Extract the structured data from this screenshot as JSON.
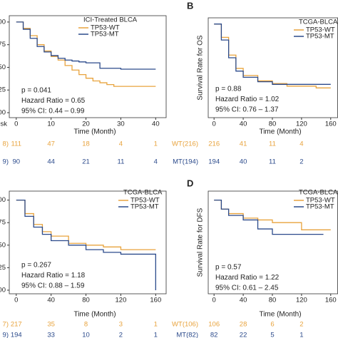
{
  "chart_data": [
    {
      "type": "line",
      "step": true,
      "panel_letter": null,
      "legend_title": "ICI-Treated BLCA",
      "x_label": "Time (Month)",
      "y_label": null,
      "xlim": [
        -2,
        43
      ],
      "xticks": [
        0,
        10,
        20,
        30,
        40
      ],
      "ylim": [
        -0.055,
        1.07
      ],
      "yticks": [
        {
          "value": 0,
          "label": "0.00"
        },
        {
          "value": 0.25,
          "label": "0.25"
        },
        {
          "value": 0.5,
          "label": "0.50"
        },
        {
          "value": 0.75,
          "label": "0.75"
        },
        {
          "value": 1,
          "label": "1.00"
        }
      ],
      "series": [
        {
          "name": "TP53-WT",
          "color": "#e8a33d",
          "x": [
            0,
            2,
            4,
            6,
            8,
            10,
            12,
            14,
            16,
            18,
            20,
            22,
            24,
            26,
            28,
            40
          ],
          "values": [
            1,
            0.93,
            0.85,
            0.75,
            0.68,
            0.62,
            0.58,
            0.52,
            0.47,
            0.42,
            0.38,
            0.35,
            0.33,
            0.31,
            0.29,
            0.29
          ]
        },
        {
          "name": "TP53-MT",
          "color": "#2b4a8b",
          "x": [
            0,
            2,
            4,
            6,
            8,
            10,
            12,
            14,
            16,
            18,
            20,
            24,
            30,
            40
          ],
          "values": [
            1,
            0.92,
            0.82,
            0.73,
            0.67,
            0.63,
            0.6,
            0.58,
            0.57,
            0.56,
            0.55,
            0.49,
            0.48,
            0.48
          ]
        }
      ],
      "annotations": [
        "p = 0.041",
        "Hazard Ratio = 0.65",
        "95% CI: 0.44 – 0.99"
      ],
      "risk_title": "sk",
      "risk_table": [
        {
          "label": "8)",
          "color": "#e8a33d",
          "values": [
            111,
            47,
            18,
            4,
            1
          ]
        },
        {
          "label": "9)",
          "color": "#2b4a8b",
          "values": [
            90,
            44,
            21,
            11,
            4
          ]
        }
      ]
    },
    {
      "type": "line",
      "step": true,
      "panel_letter": "B",
      "legend_title": "TCGA-BLCA",
      "x_label": "Time (Month)",
      "y_label": "Survival Rate for OS",
      "xlim": [
        -8,
        170
      ],
      "xticks": [
        0,
        40,
        80,
        120,
        160
      ],
      "ylim": [
        -0.055,
        1.07
      ],
      "series": [
        {
          "name": "TP53-WT",
          "color": "#e8a33d",
          "x": [
            0,
            10,
            20,
            30,
            40,
            60,
            80,
            100,
            120,
            140,
            160
          ],
          "values": [
            1,
            0.85,
            0.65,
            0.5,
            0.42,
            0.36,
            0.33,
            0.3,
            0.3,
            0.28,
            0.28
          ]
        },
        {
          "name": "TP53-MT",
          "color": "#2b4a8b",
          "x": [
            0,
            10,
            20,
            30,
            40,
            60,
            80,
            100,
            120,
            140,
            160
          ],
          "values": [
            1,
            0.82,
            0.62,
            0.47,
            0.4,
            0.35,
            0.32,
            0.32,
            0.32,
            0.32,
            0.32
          ]
        }
      ],
      "annotations": [
        "p = 0.88",
        "Hazard Ratio = 1.02",
        "95% CI: 0.76 – 1.37"
      ],
      "risk_table": [
        {
          "label": "WT(216)",
          "color": "#e8a33d",
          "values": [
            216,
            41,
            11,
            4
          ]
        },
        {
          "label": "MT(194)",
          "color": "#2b4a8b",
          "values": [
            194,
            40,
            11,
            2
          ]
        }
      ]
    },
    {
      "type": "line",
      "step": true,
      "panel_letter": null,
      "legend_title": "TCGA-BLCA",
      "x_label": "Time (Month)",
      "y_label": null,
      "xlim": [
        -8,
        172
      ],
      "xticks": [
        0,
        40,
        80,
        120,
        160
      ],
      "ylim": [
        -0.04,
        1.1
      ],
      "yticks": [
        {
          "value": 0,
          "label": "0.00"
        },
        {
          "value": 0.25,
          "label": "0.25"
        },
        {
          "value": 0.5,
          "label": "0.50"
        },
        {
          "value": 0.75,
          "label": "0.75"
        },
        {
          "value": 1,
          "label": "1.00"
        }
      ],
      "series": [
        {
          "name": "TP53-WT",
          "color": "#e8a33d",
          "x": [
            0,
            10,
            20,
            30,
            40,
            60,
            80,
            100,
            120,
            150,
            160
          ],
          "values": [
            1,
            0.85,
            0.73,
            0.65,
            0.6,
            0.52,
            0.5,
            0.48,
            0.45,
            0.45,
            0.45
          ]
        },
        {
          "name": "TP53-MT",
          "color": "#2b4a8b",
          "x": [
            0,
            10,
            20,
            30,
            40,
            60,
            80,
            100,
            120,
            159,
            160
          ],
          "values": [
            1,
            0.82,
            0.7,
            0.62,
            0.55,
            0.5,
            0.45,
            0.42,
            0.4,
            0.4,
            0
          ]
        }
      ],
      "annotations": [
        "p = 0.267",
        "Hazard Ratio = 1.18",
        "95% CI: 0.88 – 1.59"
      ],
      "risk_table": [
        {
          "label": "7)",
          "color": "#e8a33d",
          "values": [
            217,
            35,
            8,
            3,
            1
          ]
        },
        {
          "label": "9)",
          "color": "#2b4a8b",
          "values": [
            194,
            33,
            10,
            2,
            1
          ]
        }
      ]
    },
    {
      "type": "line",
      "step": true,
      "panel_letter": "D",
      "legend_title": "TCGA-BLCA",
      "x_label": "Time (Month)",
      "y_label": "Survival Rate for DFS",
      "xlim": [
        -8,
        170
      ],
      "xticks": [
        0,
        40,
        80,
        120,
        160
      ],
      "ylim": [
        -0.04,
        1.1
      ],
      "series": [
        {
          "name": "TP53-WT",
          "color": "#e8a33d",
          "x": [
            0,
            10,
            20,
            40,
            60,
            80,
            100,
            120,
            160
          ],
          "values": [
            1,
            0.9,
            0.85,
            0.8,
            0.78,
            0.75,
            0.75,
            0.67,
            0.67
          ]
        },
        {
          "name": "TP53-MT",
          "color": "#2b4a8b",
          "x": [
            0,
            10,
            20,
            40,
            60,
            80,
            100,
            120,
            150
          ],
          "values": [
            1,
            0.9,
            0.83,
            0.78,
            0.68,
            0.62,
            0.62,
            0.62,
            0.62
          ]
        }
      ],
      "annotations": [
        "p = 0.57",
        "Hazard Ratio = 1.22",
        "95% CI: 0.61 – 2.45"
      ],
      "risk_table": [
        {
          "label": "WT(106)",
          "color": "#e8a33d",
          "values": [
            106,
            28,
            6,
            2
          ]
        },
        {
          "label": "MT(82)",
          "color": "#2b4a8b",
          "values": [
            82,
            22,
            5,
            1
          ]
        }
      ]
    }
  ]
}
